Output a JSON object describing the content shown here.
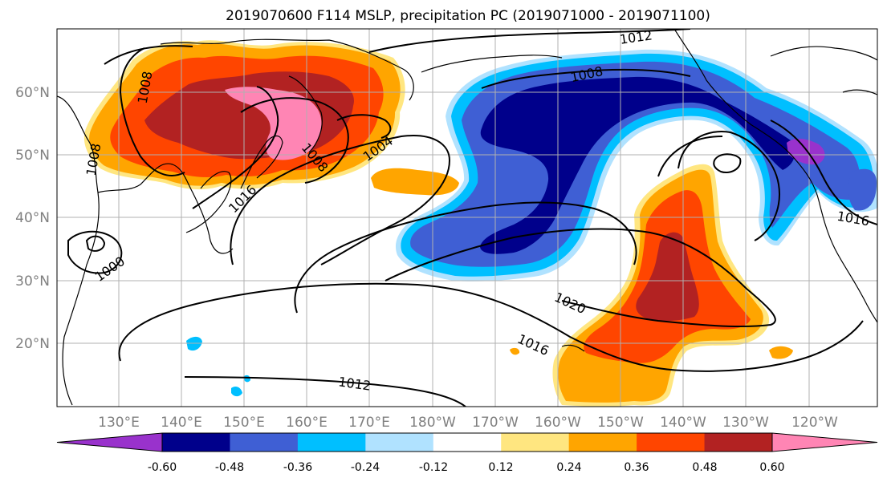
{
  "title": "2019070600 F114 MSLP, precipitation PC (2019071000 - 2019071100)",
  "map": {
    "lon_ticks": [
      "130°E",
      "140°E",
      "150°E",
      "160°E",
      "170°E",
      "180°W",
      "170°W",
      "160°W",
      "150°W",
      "140°W",
      "130°W",
      "120°W"
    ],
    "lat_ticks": [
      "60°N",
      "50°N",
      "40°N",
      "30°N",
      "20°N"
    ],
    "isobar_labels": [
      "1012",
      "1008",
      "1008",
      "1004",
      "1008",
      "1016",
      "1008",
      "1000",
      "1020",
      "1016",
      "1012",
      "1016"
    ],
    "colors": {
      "grid": "#b0b0b0",
      "coast": "#000000"
    }
  },
  "colorbar": {
    "levels": [
      "-0.60",
      "-0.48",
      "-0.36",
      "-0.24",
      "-0.12",
      "0.12",
      "0.24",
      "0.36",
      "0.48",
      "0.60"
    ],
    "colors": [
      "#9932cc",
      "#00008b",
      "#3f5fd4",
      "#00bfff",
      "#b0e2ff",
      "#ffffff",
      "#ffe680",
      "#ffa500",
      "#ff4500",
      "#b22222",
      "#ff85b4"
    ]
  }
}
